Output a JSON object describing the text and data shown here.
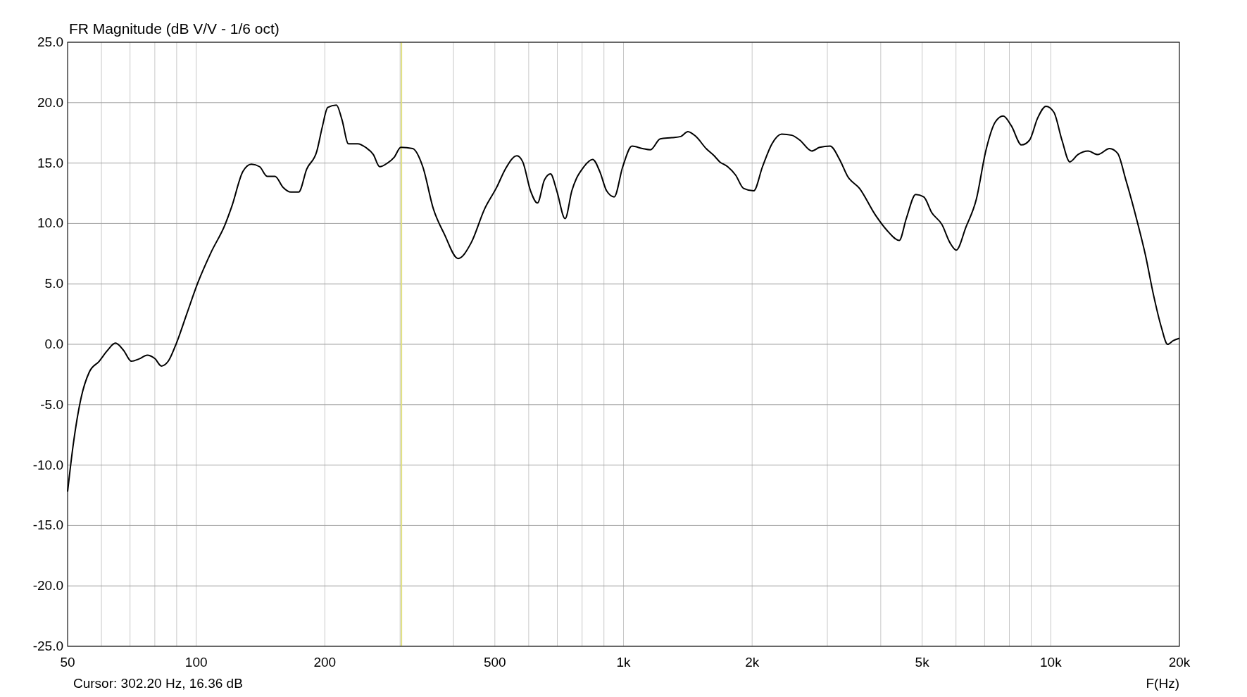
{
  "chart_data": {
    "type": "line",
    "title": "FR Magnitude (dB V/V - 1/6 oct)",
    "xlabel": "F(Hz)",
    "annotations": [
      "Cursor: 302.20 Hz, 16.36 dB"
    ],
    "log": "x",
    "grid": true,
    "marker": "none",
    "line_style": "solid",
    "xlim": [
      50,
      20000
    ],
    "xticks": [
      {
        "value": 50,
        "label": "50"
      },
      {
        "value": 60,
        "label": null
      },
      {
        "value": 70,
        "label": null
      },
      {
        "value": 80,
        "label": null
      },
      {
        "value": 90,
        "label": null
      },
      {
        "value": 100,
        "label": "100"
      },
      {
        "value": 200,
        "label": "200"
      },
      {
        "value": 300,
        "label": null
      },
      {
        "value": 400,
        "label": null
      },
      {
        "value": 500,
        "label": "500"
      },
      {
        "value": 600,
        "label": null
      },
      {
        "value": 700,
        "label": null
      },
      {
        "value": 800,
        "label": null
      },
      {
        "value": 900,
        "label": null
      },
      {
        "value": 1000,
        "label": "1k"
      },
      {
        "value": 2000,
        "label": "2k"
      },
      {
        "value": 3000,
        "label": null
      },
      {
        "value": 4000,
        "label": null
      },
      {
        "value": 5000,
        "label": "5k"
      },
      {
        "value": 6000,
        "label": null
      },
      {
        "value": 7000,
        "label": null
      },
      {
        "value": 8000,
        "label": null
      },
      {
        "value": 9000,
        "label": null
      },
      {
        "value": 10000,
        "label": "10k"
      },
      {
        "value": 20000,
        "label": "20k"
      }
    ],
    "ylim": [
      -25,
      25
    ],
    "yticks": [
      {
        "value": -25,
        "label": "-25.0"
      },
      {
        "value": -20,
        "label": "-20.0"
      },
      {
        "value": -15,
        "label": "-15.0"
      },
      {
        "value": -10,
        "label": "-10.0"
      },
      {
        "value": -5,
        "label": "-5.0"
      },
      {
        "value": 0,
        "label": "0.0"
      },
      {
        "value": 5,
        "label": "5.0"
      },
      {
        "value": 10,
        "label": "10.0"
      },
      {
        "value": 15,
        "label": "15.0"
      },
      {
        "value": 20,
        "label": "20.0"
      },
      {
        "value": 25,
        "label": "25.0"
      }
    ],
    "ref_lines": [
      {
        "axis": "x",
        "value": 302.2,
        "color": "#e0e080"
      }
    ],
    "series": [
      {
        "color": "#000000",
        "x": [
          50,
          51.5,
          53.8,
          56.2,
          59.3,
          62,
          64.7,
          67.6,
          70.5,
          73.6,
          76.8,
          80.1,
          82.9,
          86,
          89.9,
          95,
          100.9,
          108.3,
          116.8,
          121.1,
          128.6,
          134.6,
          140.7,
          146.6,
          152.9,
          159.6,
          166.5,
          173.7,
          181.4,
          191.6,
          197.3,
          203.1,
          212.9,
          219.3,
          227.1,
          238.8,
          249.1,
          259.8,
          268.6,
          280.3,
          290.9,
          301.2,
          321.1,
          339,
          359,
          381,
          410,
          440,
          473,
          505,
          529,
          563,
          581,
          606,
          629,
          653,
          675,
          698,
          730,
          757,
          808,
          847,
          880,
          913,
          951,
          996,
          1047,
          1108,
          1156,
          1219,
          1298,
          1361,
          1415,
          1477,
          1561,
          1630,
          1680,
          1753,
          1830,
          1910,
          2017,
          2115,
          2226,
          2344,
          2478,
          2586,
          2758,
          2878,
          3044,
          3204,
          3346,
          3568,
          3886,
          4144,
          4420,
          4590,
          4830,
          5043,
          5265,
          5565,
          5810,
          6010,
          6330,
          6695,
          7045,
          7415,
          7740,
          8080,
          8545,
          8920,
          9310,
          9746,
          10170,
          10620,
          11080,
          11570,
          12230,
          12880,
          13730,
          14340,
          14960,
          15950,
          16650,
          17390,
          18150,
          18770,
          19340,
          20000
        ],
        "values": [
          -12.2,
          -8.4,
          -4.4,
          -2.3,
          -1.4,
          -0.5,
          0.1,
          -0.5,
          -1.4,
          -1.2,
          -0.9,
          -1.2,
          -1.8,
          -1.4,
          0.1,
          2.5,
          5.1,
          7.6,
          9.9,
          11.4,
          14.3,
          14.9,
          14.7,
          13.9,
          13.9,
          13,
          12.6,
          12.6,
          14.5,
          16,
          18,
          19.6,
          19.8,
          18.6,
          16.6,
          16.6,
          16.3,
          15.7,
          14.7,
          15,
          15.5,
          16.3,
          16.2,
          14.7,
          11.2,
          9.1,
          7.1,
          8.4,
          11.2,
          13,
          14.5,
          15.6,
          15.1,
          12.7,
          11.7,
          13.6,
          14.1,
          12.7,
          10.4,
          12.7,
          14.7,
          15.3,
          14.3,
          12.7,
          12.2,
          14.7,
          16.4,
          16.2,
          16.1,
          17,
          17.1,
          17.2,
          17.6,
          17.2,
          16.2,
          15.6,
          15.1,
          14.7,
          14,
          12.9,
          12.7,
          14.7,
          16.6,
          17.4,
          17.3,
          16.9,
          16,
          16.3,
          16.4,
          15.3,
          13.9,
          12.9,
          10.7,
          9.4,
          8.6,
          10.4,
          12.4,
          12.2,
          10.9,
          9.9,
          8.4,
          7.8,
          9.7,
          12,
          16,
          18.4,
          18.9,
          18.1,
          16.5,
          16.9,
          18.7,
          19.7,
          19.2,
          16.9,
          15.1,
          15.7,
          16,
          15.7,
          16.2,
          15.8,
          13.7,
          10.1,
          7.4,
          4.1,
          1.4,
          0,
          0.3,
          0.5
        ]
      }
    ]
  }
}
